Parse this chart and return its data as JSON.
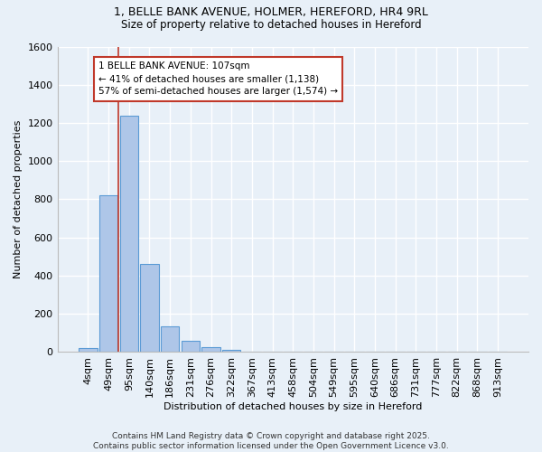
{
  "title": "1, BELLE BANK AVENUE, HOLMER, HEREFORD, HR4 9RL",
  "subtitle": "Size of property relative to detached houses in Hereford",
  "xlabel": "Distribution of detached houses by size in Hereford",
  "ylabel": "Number of detached properties",
  "bar_labels": [
    "4sqm",
    "49sqm",
    "95sqm",
    "140sqm",
    "186sqm",
    "231sqm",
    "276sqm",
    "322sqm",
    "367sqm",
    "413sqm",
    "458sqm",
    "504sqm",
    "549sqm",
    "595sqm",
    "640sqm",
    "686sqm",
    "731sqm",
    "777sqm",
    "822sqm",
    "868sqm",
    "913sqm"
  ],
  "bar_values": [
    22,
    820,
    1240,
    460,
    135,
    58,
    25,
    12,
    0,
    0,
    0,
    0,
    0,
    0,
    0,
    0,
    0,
    0,
    0,
    0,
    0
  ],
  "bar_color": "#aec6e8",
  "bar_edge_color": "#5b9bd5",
  "background_color": "#e8f0f8",
  "grid_color": "#ffffff",
  "vline_x_index": 2,
  "vline_color": "#c0392b",
  "annotation_text": "1 BELLE BANK AVENUE: 107sqm\n← 41% of detached houses are smaller (1,138)\n57% of semi-detached houses are larger (1,574) →",
  "annotation_box_color": "#ffffff",
  "annotation_box_edge": "#c0392b",
  "footer": "Contains HM Land Registry data © Crown copyright and database right 2025.\nContains public sector information licensed under the Open Government Licence v3.0.",
  "ylim": [
    0,
    1600
  ],
  "yticks": [
    0,
    200,
    400,
    600,
    800,
    1000,
    1200,
    1400,
    1600
  ]
}
